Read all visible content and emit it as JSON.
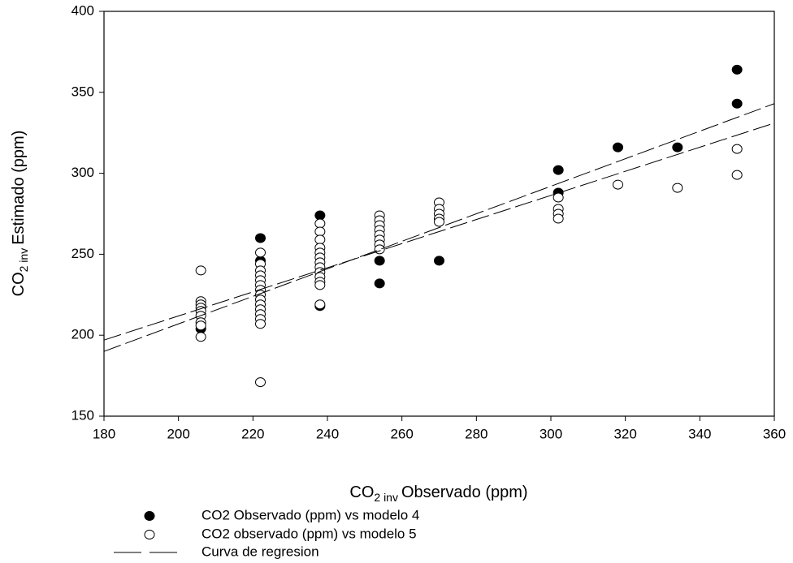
{
  "chart_data": {
    "type": "scatter",
    "xlabel_parts": [
      "CO",
      "2 inv",
      "Observado (ppm)"
    ],
    "ylabel_parts": [
      "CO",
      "2 inv",
      "Estimado (ppm)"
    ],
    "xlim": [
      180,
      360
    ],
    "xticks": [
      180,
      200,
      220,
      240,
      260,
      280,
      300,
      320,
      340,
      360
    ],
    "ylim": [
      150,
      400
    ],
    "yticks": [
      150,
      200,
      250,
      300,
      350,
      400
    ],
    "series": [
      {
        "name": "CO2 Observado (ppm) vs modelo 4",
        "color": "#000000",
        "filled": true,
        "x": [
          206,
          222,
          222,
          238,
          238,
          254,
          254,
          270,
          302,
          302,
          318,
          334,
          350,
          350
        ],
        "values": [
          204,
          260,
          246,
          274,
          218,
          246,
          232,
          246,
          302,
          288,
          316,
          316,
          364,
          343
        ]
      },
      {
        "name": "CO2 observado (ppm) vs modelo 5",
        "color": "#000000",
        "filled": false,
        "x": [
          206,
          206,
          206,
          206,
          206,
          206,
          206,
          206,
          206,
          222,
          222,
          222,
          222,
          222,
          222,
          222,
          222,
          222,
          222,
          222,
          222,
          222,
          222,
          222,
          238,
          238,
          238,
          238,
          238,
          238,
          238,
          238,
          238,
          238,
          238,
          238,
          238,
          254,
          254,
          254,
          254,
          254,
          254,
          254,
          254,
          270,
          270,
          270,
          270,
          270,
          302,
          302,
          302,
          302,
          318,
          334,
          350,
          350
        ],
        "values": [
          240,
          221,
          219,
          217,
          215,
          212,
          208,
          206,
          199,
          251,
          244,
          240,
          237,
          234,
          231,
          228,
          225,
          222,
          219,
          216,
          213,
          210,
          207,
          171,
          269,
          264,
          259,
          254,
          251,
          248,
          245,
          242,
          239,
          236,
          233,
          231,
          219,
          274,
          271,
          268,
          265,
          262,
          259,
          256,
          253,
          282,
          278,
          275,
          272,
          270,
          285,
          278,
          275,
          272,
          293,
          291,
          315,
          299
        ]
      },
      {
        "name": "Curva de regresion",
        "color": "#000000",
        "type": "line",
        "lines": [
          {
            "x": [
              180,
              360
            ],
            "values": [
              190,
              343
            ]
          },
          {
            "x": [
              180,
              360
            ],
            "values": [
              197,
              331
            ]
          }
        ]
      }
    ]
  }
}
